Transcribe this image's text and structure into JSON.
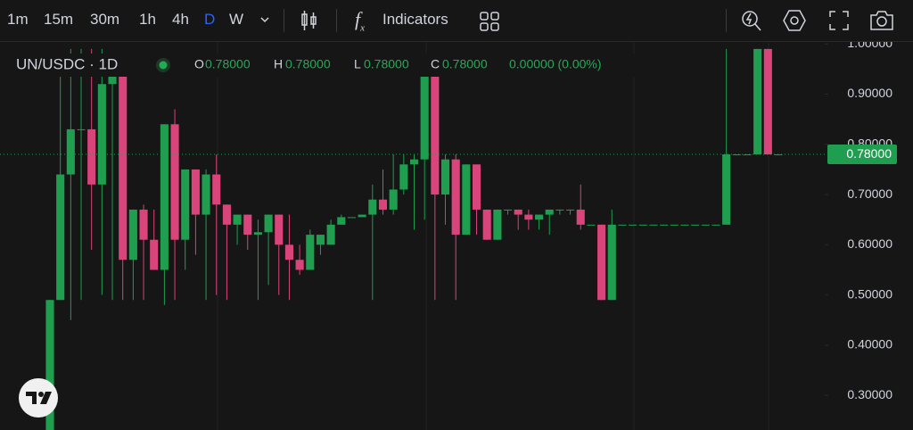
{
  "toolbar": {
    "intervals": [
      "1m",
      "15m",
      "30m",
      "1h",
      "4h",
      "D",
      "W"
    ],
    "active_interval": 5,
    "indicators": "Indicators"
  },
  "legend": {
    "symbol": "UN/USDC · 1D",
    "open_label": "O",
    "open": "0.78000",
    "high_label": "H",
    "high": "0.78000",
    "low_label": "L",
    "low": "0.78000",
    "close_label": "C",
    "close": "0.78000",
    "change": "0.00000 (0.00%)"
  },
  "chart_data": {
    "type": "candlestick",
    "up_color": "#1e9e4e",
    "down_color": "#d9447a",
    "ylim": [
      0.231,
      1.004
    ],
    "yticks": [
      {
        "value": 1.0,
        "label": "1.00000"
      },
      {
        "value": 0.9,
        "label": "0.90000"
      },
      {
        "value": 0.8,
        "label": "0.80000"
      },
      {
        "value": 0.7,
        "label": "0.70000"
      },
      {
        "value": 0.6,
        "label": "0.60000"
      },
      {
        "value": 0.5,
        "label": "0.50000"
      },
      {
        "value": 0.4,
        "label": "0.40000"
      },
      {
        "value": 0.3,
        "label": "0.30000"
      }
    ],
    "last_price": {
      "value": 0.78,
      "label": "0.78000"
    },
    "open": [
      0.23,
      0.49,
      0.74,
      0.83,
      0.83,
      0.72,
      0.92,
      0.94,
      0.57,
      0.67,
      0.61,
      0.55,
      0.84,
      0.61,
      0.75,
      0.66,
      0.74,
      0.68,
      0.64,
      0.66,
      0.62,
      0.625,
      0.66,
      0.6,
      0.57,
      0.55,
      0.6,
      0.6,
      0.64,
      0.655,
      0.655,
      0.66,
      0.69,
      0.67,
      0.71,
      0.76,
      0.77,
      0.97,
      0.7,
      0.77,
      0.62,
      0.76,
      0.67,
      0.61,
      0.67,
      0.67,
      0.66,
      0.65,
      0.66,
      0.67,
      0.67,
      0.67,
      0.64,
      0.64,
      0.49,
      0.64,
      0.64,
      0.64,
      0.64,
      0.64,
      0.64,
      0.64,
      0.64,
      0.64,
      0.64,
      0.64,
      0.78,
      0.78,
      0.78,
      0.99,
      0.78
    ],
    "high": [
      0.49,
      0.97,
      0.99,
      0.99,
      0.99,
      0.99,
      0.98,
      0.94,
      0.67,
      0.68,
      0.67,
      0.84,
      0.87,
      0.75,
      0.75,
      0.75,
      0.78,
      0.68,
      0.66,
      0.66,
      0.65,
      0.66,
      0.66,
      0.66,
      0.6,
      0.63,
      0.62,
      0.65,
      0.66,
      0.655,
      0.66,
      0.72,
      0.75,
      0.78,
      0.78,
      0.78,
      0.98,
      0.98,
      0.78,
      0.78,
      0.76,
      0.76,
      0.67,
      0.67,
      0.67,
      0.67,
      0.67,
      0.66,
      0.67,
      0.67,
      0.67,
      0.72,
      0.64,
      0.64,
      0.67,
      0.64,
      0.64,
      0.64,
      0.64,
      0.64,
      0.64,
      0.64,
      0.64,
      0.64,
      0.64,
      0.99,
      0.78,
      0.78,
      0.99,
      0.99,
      0.78
    ],
    "low": [
      0.23,
      0.49,
      0.45,
      0.49,
      0.59,
      0.5,
      0.49,
      0.49,
      0.49,
      0.49,
      0.55,
      0.48,
      0.49,
      0.55,
      0.58,
      0.49,
      0.5,
      0.49,
      0.6,
      0.59,
      0.49,
      0.52,
      0.5,
      0.49,
      0.54,
      0.55,
      0.58,
      0.6,
      0.64,
      0.655,
      0.655,
      0.49,
      0.66,
      0.66,
      0.7,
      0.63,
      0.65,
      0.49,
      0.64,
      0.49,
      0.62,
      0.62,
      0.61,
      0.61,
      0.66,
      0.63,
      0.63,
      0.63,
      0.62,
      0.66,
      0.66,
      0.63,
      0.64,
      0.49,
      0.49,
      0.64,
      0.64,
      0.64,
      0.64,
      0.64,
      0.64,
      0.64,
      0.64,
      0.64,
      0.64,
      0.64,
      0.78,
      0.78,
      0.78,
      0.78,
      0.78
    ],
    "close": [
      0.49,
      0.74,
      0.83,
      0.83,
      0.72,
      0.92,
      0.94,
      0.57,
      0.67,
      0.61,
      0.55,
      0.84,
      0.61,
      0.75,
      0.66,
      0.74,
      0.68,
      0.64,
      0.66,
      0.62,
      0.625,
      0.66,
      0.6,
      0.57,
      0.55,
      0.62,
      0.62,
      0.64,
      0.655,
      0.655,
      0.66,
      0.69,
      0.67,
      0.71,
      0.76,
      0.77,
      0.97,
      0.7,
      0.77,
      0.62,
      0.76,
      0.67,
      0.61,
      0.67,
      0.67,
      0.66,
      0.65,
      0.66,
      0.67,
      0.67,
      0.67,
      0.64,
      0.64,
      0.49,
      0.64,
      0.64,
      0.64,
      0.64,
      0.64,
      0.64,
      0.64,
      0.64,
      0.64,
      0.64,
      0.64,
      0.78,
      0.78,
      0.78,
      0.99,
      0.78,
      0.78
    ]
  }
}
